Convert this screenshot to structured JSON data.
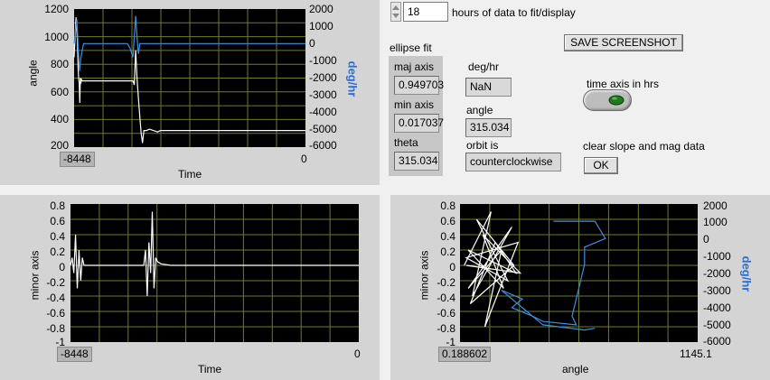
{
  "graph_top_left": {
    "ylabel": "angle",
    "ylabel_right": "deg/hr",
    "xlabel": "Time",
    "y_ticks": [
      "1200",
      "1000",
      "800",
      "600",
      "400",
      "200"
    ],
    "y_right_ticks": [
      "2000",
      "1000",
      "0",
      "-1000",
      "-2000",
      "-3000",
      "-4000",
      "-5000",
      "-6000"
    ],
    "x_min": "-8448",
    "x_max": "0"
  },
  "graph_bottom_left": {
    "ylabel": "minor axis",
    "xlabel": "Time",
    "y_ticks": [
      "0.8",
      "0.6",
      "0.4",
      "0.2",
      "0",
      "-0.2",
      "-0.4",
      "-0.6",
      "-0.8",
      "-1"
    ],
    "x_min": "-8448",
    "x_max": "0"
  },
  "graph_bottom_right": {
    "ylabel": "minor axis",
    "ylabel_right": "deg/hr",
    "xlabel": "angle",
    "y_ticks": [
      "0.8",
      "0.6",
      "0.4",
      "0.2",
      "0",
      "-0.2",
      "-0.4",
      "-0.6",
      "-0.8",
      "-1"
    ],
    "y_right_ticks": [
      "2000",
      "1000",
      "0",
      "-1000",
      "-2000",
      "-3000",
      "-4000",
      "-5000",
      "-6000"
    ],
    "x_min": "0.188602",
    "x_max": "1145.1"
  },
  "controls": {
    "hours_value": "18",
    "hours_label": "hours of data to fit/display",
    "save_button": "SAVE SCREENSHOT",
    "ellipse_fit_label": "ellipse fit",
    "maj_axis_label": "maj axis",
    "maj_axis_value": "0.949703",
    "min_axis_label": "min axis",
    "min_axis_value": "0.017037",
    "theta_label": "theta",
    "theta_value": "315.034",
    "deg_hr_label": "deg/hr",
    "deg_hr_value": "NaN",
    "angle_label": "angle",
    "angle_value": "315.034",
    "orbit_label": "orbit is",
    "orbit_value": "counterclockwise",
    "time_axis_label": "time axis in hrs",
    "clear_label": "clear slope and mag data",
    "ok_button": "OK"
  },
  "colors": {
    "white_trace": "#ffffff",
    "blue_trace": "#3d8fe0",
    "grid": "#6f7a2a",
    "plot_bg": "#000000",
    "toggle_led": "#1f7a1f"
  },
  "chart_data": [
    {
      "type": "line",
      "ylabel": "angle",
      "ylabel_right": "deg/hr",
      "xlabel": "Time",
      "xlim": [
        -8448,
        0
      ],
      "ylim": [
        200,
        1200
      ],
      "ylim_right": [
        -6000,
        2000
      ],
      "series": [
        {
          "axis": "left",
          "color": "#ffffff",
          "x": [
            -8448,
            -8380,
            -8330,
            -8300,
            -8280,
            -8260,
            -8240,
            -8220,
            -8200,
            -8180,
            -8150,
            -8100,
            -6300,
            -6250,
            -6200,
            -6150,
            -6100,
            -6050,
            -6000,
            -5950,
            -5900,
            -5800,
            -5700,
            -5400,
            -5300,
            -3000,
            -2000,
            0
          ],
          "y": [
            850,
            1140,
            980,
            760,
            690,
            660,
            520,
            700,
            660,
            690,
            680,
            680,
            680,
            650,
            900,
            700,
            550,
            420,
            300,
            230,
            320,
            320,
            330,
            310,
            320,
            320,
            320,
            320
          ]
        },
        {
          "axis": "right",
          "color": "#3d8fe0",
          "x": [
            -8448,
            -8350,
            -8300,
            -8250,
            -8200,
            -8100,
            -6600,
            -6500,
            -6400,
            -6300,
            -6200,
            -6150,
            -6100,
            -6050,
            -6000,
            -5900,
            -5800,
            -5000,
            -2000,
            0
          ],
          "y": [
            0,
            1400,
            -200,
            -1600,
            -800,
            0,
            0,
            0,
            -300,
            -800,
            1600,
            400,
            -600,
            0,
            0,
            0,
            0,
            0,
            0,
            0
          ]
        }
      ]
    },
    {
      "type": "line",
      "ylabel": "minor axis",
      "xlabel": "Time",
      "xlim": [
        -8448,
        0
      ],
      "ylim": [
        -1,
        0.8
      ],
      "series": [
        {
          "color": "#ffffff",
          "x": [
            -8448,
            -8400,
            -8350,
            -8300,
            -8250,
            -8200,
            -8150,
            -8100,
            -8050,
            -8000,
            -7900,
            -7500,
            -6300,
            -6250,
            -6200,
            -6150,
            -6100,
            -6050,
            -6000,
            -5950,
            -5900,
            -5800,
            -5500,
            -5000,
            0
          ],
          "y": [
            0,
            0.1,
            -0.1,
            0.4,
            -0.3,
            0.2,
            -0.2,
            0.1,
            0,
            0,
            0,
            0,
            0,
            0.2,
            -0.4,
            0.3,
            -0.1,
            0.7,
            -0.3,
            0.1,
            0.05,
            0.02,
            0,
            0,
            0
          ]
        }
      ]
    },
    {
      "type": "scatter",
      "ylabel": "minor axis",
      "ylabel_right": "deg/hr",
      "xlabel": "angle",
      "xlim": [
        0.188602,
        1145.1
      ],
      "ylim": [
        -1,
        0.8
      ],
      "ylim_right": [
        -6000,
        2000
      ],
      "series": [
        {
          "axis": "left",
          "color": "#ffffff",
          "mode": "lines",
          "x": [
            20,
            150,
            60,
            250,
            40,
            200,
            120,
            280,
            30,
            230,
            80,
            260,
            50,
            170,
            270,
            40,
            210,
            110,
            290,
            30
          ],
          "y": [
            0,
            0.7,
            -0.4,
            0.5,
            -0.3,
            0.2,
            -0.8,
            0.3,
            0.1,
            -0.2,
            0.6,
            0,
            -0.5,
            0.3,
            -0.1,
            0.2,
            -0.3,
            0.4,
            -0.1,
            0
          ]
        },
        {
          "axis": "right",
          "color": "#3d8fe0",
          "mode": "lines",
          "x": [
            450,
            550,
            650,
            700,
            600,
            600,
            580,
            560,
            540,
            560,
            400,
            350,
            250,
            300,
            200,
            400,
            600,
            650
          ],
          "y": [
            1000,
            1000,
            1000,
            0,
            -500,
            -1500,
            -2500,
            -3500,
            -4500,
            -5000,
            -4800,
            -4500,
            -4000,
            -3500,
            -3000,
            -5000,
            -5300,
            -5200
          ]
        }
      ]
    }
  ]
}
